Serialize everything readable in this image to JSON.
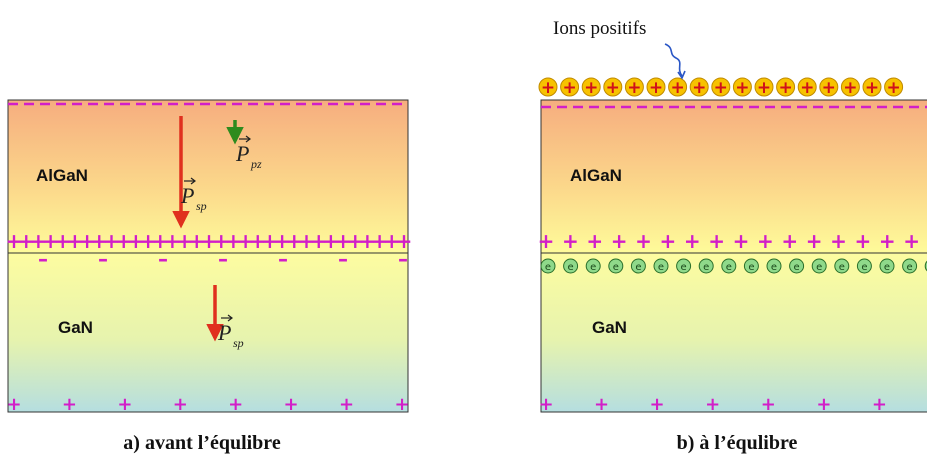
{
  "panel_a": {
    "top_layer": "AlGaN",
    "bottom_layer": "GaN",
    "pol_spontaneous_top": {
      "symbol": "P",
      "sub": "sp"
    },
    "pol_piezo": {
      "symbol": "P",
      "sub": "pz"
    },
    "pol_spontaneous_bottom": {
      "symbol": "P",
      "sub": "sp"
    },
    "caption": "a) avant l’équlibre"
  },
  "panel_b": {
    "ions_label": "Ions positifs",
    "top_layer": "AlGaN",
    "bottom_layer": "GaN",
    "electron_symbol": "e",
    "ion_symbol": "+",
    "caption": "b) à l’équlibre"
  },
  "colors": {
    "algan_top": "#f6ad7f",
    "algan_bottom": "#fefb9a",
    "gan_top": "#fdfca0",
    "gan_bottom": "#b5dee0",
    "charge_sign": "#d21ec8",
    "arrow_sp": "#e0301e",
    "arrow_pz": "#2e8b1e",
    "ion_fill": "#f7c200",
    "ion_sign": "#d0101a",
    "electron_fill": "#8fd98a",
    "electron_stroke": "#2a6f2a"
  }
}
